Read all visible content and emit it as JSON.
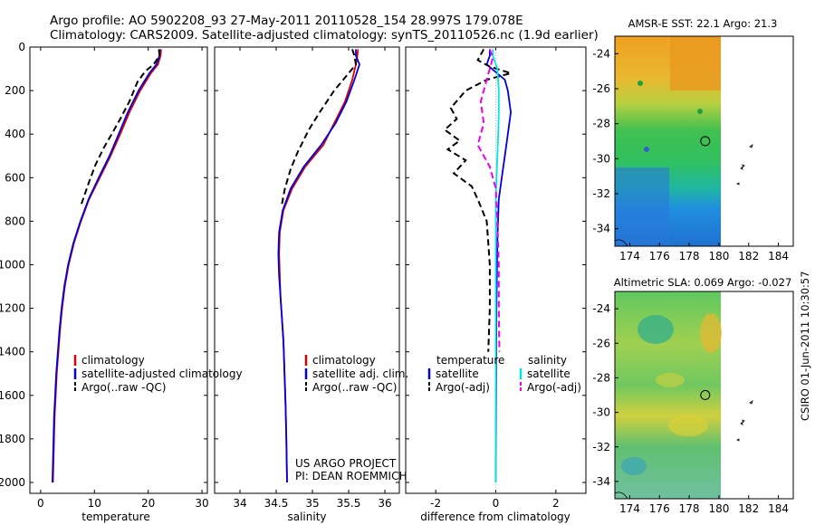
{
  "header": {
    "line1": "Argo profile: AO 5902208_93 27-May-2011 20110528_154 28.997S 179.078E",
    "line2": "Climatology: CARS2009. Satellite-adjusted climatology: synTS_20110526.nc (1.9d earlier)"
  },
  "credit": {
    "project": "US ARGO PROJECT",
    "pi": "PI: DEAN ROEMMICH"
  },
  "timestamp": "CSIRO 01-Jun-2011 10:30:57",
  "colors": {
    "climatology": "#dd0000",
    "satellite": "#0000dd",
    "argo": "#000000",
    "salinity_satellite": "#00e5e5",
    "salinity_argo": "#ee00ee"
  },
  "chart_data": [
    {
      "type": "line",
      "xlabel": "temperature",
      "xlim": [
        -2,
        31
      ],
      "ylim": [
        2050,
        0
      ],
      "xticks": [
        "0",
        "10",
        "20",
        "30"
      ],
      "yticks": [
        "0",
        "200",
        "400",
        "600",
        "800",
        "1000",
        "1200",
        "1400",
        "1600",
        "1800",
        "2000"
      ],
      "legend": [
        "climatology",
        "satellite-adjusted climatology",
        "Argo(..raw -QC)"
      ],
      "series": [
        {
          "name": "climatology",
          "color": "#dd0000",
          "dash": "",
          "points": [
            [
              22.4,
              10
            ],
            [
              22.3,
              40
            ],
            [
              21.8,
              80
            ],
            [
              20.5,
              120
            ],
            [
              18.5,
              200
            ],
            [
              16.5,
              300
            ],
            [
              14.8,
              400
            ],
            [
              13.0,
              500
            ],
            [
              11.0,
              600
            ],
            [
              9.0,
              700
            ],
            [
              7.5,
              800
            ],
            [
              6.2,
              900
            ],
            [
              5.2,
              1000
            ],
            [
              4.5,
              1100
            ],
            [
              4.0,
              1200
            ],
            [
              3.6,
              1300
            ],
            [
              3.3,
              1400
            ],
            [
              3.0,
              1500
            ],
            [
              2.8,
              1600
            ],
            [
              2.6,
              1700
            ],
            [
              2.5,
              1800
            ],
            [
              2.4,
              1900
            ],
            [
              2.3,
              2000
            ]
          ]
        },
        {
          "name": "satellite-adjusted climatology",
          "color": "#0000dd",
          "dash": "",
          "points": [
            [
              22.2,
              10
            ],
            [
              22.1,
              40
            ],
            [
              21.5,
              80
            ],
            [
              20.2,
              120
            ],
            [
              18.2,
              200
            ],
            [
              16.2,
              300
            ],
            [
              14.5,
              400
            ],
            [
              12.8,
              500
            ],
            [
              10.8,
              600
            ],
            [
              8.9,
              700
            ],
            [
              7.4,
              800
            ],
            [
              6.1,
              900
            ],
            [
              5.1,
              1000
            ],
            [
              4.4,
              1100
            ],
            [
              3.9,
              1200
            ],
            [
              3.5,
              1300
            ],
            [
              3.2,
              1400
            ],
            [
              2.9,
              1500
            ],
            [
              2.7,
              1600
            ],
            [
              2.5,
              1700
            ],
            [
              2.4,
              1800
            ],
            [
              2.3,
              1900
            ],
            [
              2.2,
              2000
            ]
          ]
        },
        {
          "name": "Argo(..raw -QC)",
          "color": "#000000",
          "dash": "7,4",
          "points": [
            [
              22.0,
              10
            ],
            [
              22.1,
              40
            ],
            [
              21.0,
              80
            ],
            [
              19.5,
              110
            ],
            [
              18.0,
              160
            ],
            [
              16.5,
              250
            ],
            [
              14.8,
              330
            ],
            [
              13.2,
              400
            ],
            [
              11.8,
              460
            ],
            [
              10.2,
              540
            ],
            [
              9.0,
              620
            ],
            [
              7.6,
              720
            ]
          ]
        }
      ]
    },
    {
      "type": "line",
      "xlabel": "salinity",
      "xlim": [
        33.65,
        36.2
      ],
      "ylim": [
        2050,
        0
      ],
      "xticks": [
        "34",
        "34.5",
        "35",
        "35.5",
        "36"
      ],
      "legend": [
        "climatology",
        "satellite adj. clim.",
        "Argo(..raw -QC)"
      ],
      "series": [
        {
          "name": "climatology",
          "color": "#dd0000",
          "dash": "",
          "points": [
            [
              35.63,
              10
            ],
            [
              35.62,
              40
            ],
            [
              35.6,
              80
            ],
            [
              35.55,
              150
            ],
            [
              35.45,
              250
            ],
            [
              35.3,
              350
            ],
            [
              35.15,
              450
            ],
            [
              34.9,
              550
            ],
            [
              34.72,
              650
            ],
            [
              34.6,
              750
            ],
            [
              34.55,
              850
            ],
            [
              34.54,
              950
            ],
            [
              34.55,
              1050
            ],
            [
              34.56,
              1150
            ],
            [
              34.58,
              1250
            ],
            [
              34.6,
              1350
            ],
            [
              34.61,
              1450
            ],
            [
              34.62,
              1550
            ],
            [
              34.63,
              1650
            ],
            [
              34.64,
              1800
            ],
            [
              34.65,
              2000
            ]
          ]
        },
        {
          "name": "satellite adj. clim.",
          "color": "#0000dd",
          "dash": "",
          "points": [
            [
              35.6,
              10
            ],
            [
              35.6,
              40
            ],
            [
              35.65,
              80
            ],
            [
              35.58,
              150
            ],
            [
              35.47,
              250
            ],
            [
              35.32,
              350
            ],
            [
              35.12,
              450
            ],
            [
              34.88,
              550
            ],
            [
              34.7,
              650
            ],
            [
              34.59,
              750
            ],
            [
              34.54,
              850
            ],
            [
              34.53,
              950
            ],
            [
              34.54,
              1050
            ],
            [
              34.56,
              1150
            ],
            [
              34.58,
              1250
            ],
            [
              34.6,
              1350
            ],
            [
              34.61,
              1450
            ],
            [
              34.62,
              1550
            ],
            [
              34.63,
              1650
            ],
            [
              34.64,
              1800
            ],
            [
              34.65,
              2000
            ]
          ]
        },
        {
          "name": "Argo(..raw -QC)",
          "color": "#000000",
          "dash": "7,4",
          "points": [
            [
              35.55,
              10
            ],
            [
              35.58,
              40
            ],
            [
              35.6,
              80
            ],
            [
              35.5,
              120
            ],
            [
              35.3,
              200
            ],
            [
              35.1,
              300
            ],
            [
              34.95,
              380
            ],
            [
              34.8,
              480
            ],
            [
              34.7,
              560
            ],
            [
              34.62,
              650
            ],
            [
              34.58,
              720
            ]
          ]
        }
      ]
    },
    {
      "type": "line",
      "xlabel": "difference from climatology",
      "xlim": [
        -3,
        3
      ],
      "ylim": [
        2050,
        0
      ],
      "xticks": [
        "-2",
        "0",
        "2"
      ],
      "legend_left_title": "temperature",
      "legend_right_title": "salinity",
      "legend_left": [
        "satellite",
        "Argo(-adj)"
      ],
      "legend_right": [
        "satellite",
        "Argo(-adj)"
      ],
      "series": [
        {
          "name": "temperature satellite",
          "color": "#0000dd",
          "dash": "",
          "points": [
            [
              -0.2,
              10
            ],
            [
              -0.2,
              40
            ],
            [
              -0.3,
              80
            ],
            [
              0.3,
              150
            ],
            [
              0.4,
              200
            ],
            [
              0.5,
              300
            ],
            [
              0.4,
              400
            ],
            [
              0.3,
              500
            ],
            [
              0.2,
              600
            ],
            [
              0.1,
              700
            ],
            [
              0.05,
              900
            ],
            [
              0.02,
              1200
            ],
            [
              0.0,
              2000
            ]
          ]
        },
        {
          "name": "temperature Argo(-adj)",
          "color": "#000000",
          "dash": "7,4",
          "points": [
            [
              -0.4,
              10
            ],
            [
              -0.6,
              60
            ],
            [
              -0.2,
              90
            ],
            [
              0.5,
              120
            ],
            [
              -0.3,
              150
            ],
            [
              -1.0,
              200
            ],
            [
              -1.5,
              280
            ],
            [
              -1.3,
              330
            ],
            [
              -1.7,
              380
            ],
            [
              -1.2,
              430
            ],
            [
              -1.6,
              470
            ],
            [
              -1.0,
              520
            ],
            [
              -1.4,
              580
            ],
            [
              -0.8,
              640
            ],
            [
              -0.6,
              700
            ],
            [
              -0.3,
              800
            ],
            [
              -0.2,
              1000
            ],
            [
              -0.2,
              1200
            ],
            [
              -0.25,
              1400
            ]
          ]
        },
        {
          "name": "salinity satellite",
          "color": "#00e5e5",
          "dash": "",
          "points": [
            [
              -0.1,
              10
            ],
            [
              -0.1,
              40
            ],
            [
              0.05,
              100
            ],
            [
              0.1,
              200
            ],
            [
              0.1,
              300
            ],
            [
              0.08,
              400
            ],
            [
              0.05,
              500
            ],
            [
              0.0,
              700
            ],
            [
              0.0,
              1000
            ],
            [
              0.0,
              2000
            ]
          ]
        },
        {
          "name": "salinity Argo(-adj)",
          "color": "#ee00ee",
          "dash": "7,4",
          "points": [
            [
              -0.2,
              10
            ],
            [
              -0.1,
              50
            ],
            [
              -0.3,
              150
            ],
            [
              -0.5,
              250
            ],
            [
              -0.4,
              350
            ],
            [
              -0.6,
              450
            ],
            [
              -0.2,
              550
            ],
            [
              0.0,
              650
            ],
            [
              0.05,
              800
            ],
            [
              0.1,
              1000
            ],
            [
              0.1,
              1200
            ],
            [
              0.12,
              1400
            ]
          ]
        }
      ]
    },
    {
      "type": "heatmap",
      "title": "AMSR-E SST: 22.1 Argo: 21.3",
      "xlim": [
        173,
        185
      ],
      "ylim": [
        -35,
        -23
      ],
      "xticks": [
        "174",
        "176",
        "178",
        "180",
        "182",
        "184"
      ],
      "yticks": [
        "-24",
        "-26",
        "-28",
        "-30",
        "-32",
        "-34"
      ],
      "data_lon_max": 180,
      "float_position": [
        179.078,
        -28.997
      ]
    },
    {
      "type": "heatmap",
      "title": "Altimetric SLA: 0.069 Argo: -0.027",
      "xlim": [
        173,
        185
      ],
      "ylim": [
        -35,
        -23
      ],
      "xticks": [
        "174",
        "176",
        "178",
        "180",
        "182",
        "184"
      ],
      "yticks": [
        "-24",
        "-26",
        "-28",
        "-30",
        "-32",
        "-34"
      ],
      "data_lon_max": 180,
      "float_position": [
        179.078,
        -28.997
      ]
    }
  ]
}
